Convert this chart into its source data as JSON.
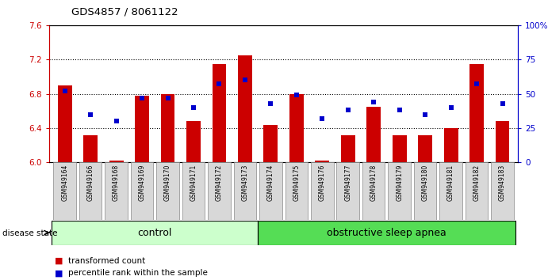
{
  "title": "GDS4857 / 8061122",
  "samples": [
    "GSM949164",
    "GSM949166",
    "GSM949168",
    "GSM949169",
    "GSM949170",
    "GSM949171",
    "GSM949172",
    "GSM949173",
    "GSM949174",
    "GSM949175",
    "GSM949176",
    "GSM949177",
    "GSM949178",
    "GSM949179",
    "GSM949180",
    "GSM949181",
    "GSM949182",
    "GSM949183"
  ],
  "bar_values": [
    6.9,
    6.32,
    6.02,
    6.78,
    6.8,
    6.48,
    7.15,
    7.25,
    6.44,
    6.8,
    6.02,
    6.32,
    6.65,
    6.32,
    6.32,
    6.4,
    7.15,
    6.48
  ],
  "blue_percentiles": [
    52,
    35,
    30,
    47,
    47,
    40,
    57,
    60,
    43,
    49,
    32,
    38,
    44,
    38,
    35,
    40,
    57,
    43
  ],
  "ylim_left": [
    6.0,
    7.6
  ],
  "ylim_right": [
    0,
    100
  ],
  "yticks_left": [
    6.0,
    6.4,
    6.8,
    7.2,
    7.6
  ],
  "yticks_right": [
    0,
    25,
    50,
    75,
    100
  ],
  "yticklabels_right": [
    "0",
    "25",
    "50",
    "75",
    "100%"
  ],
  "bar_color": "#cc0000",
  "blue_color": "#0000cc",
  "n_control": 8,
  "n_osa": 10,
  "control_color": "#ccffcc",
  "osa_color": "#55dd55",
  "control_label": "control",
  "osa_label": "obstructive sleep apnea",
  "legend_bar_label": "transformed count",
  "legend_blue_label": "percentile rank within the sample",
  "disease_state_label": "disease state",
  "background_color": "#ffffff",
  "grid_lines": [
    6.4,
    6.8,
    7.2
  ],
  "label_box_color": "#d8d8d8"
}
